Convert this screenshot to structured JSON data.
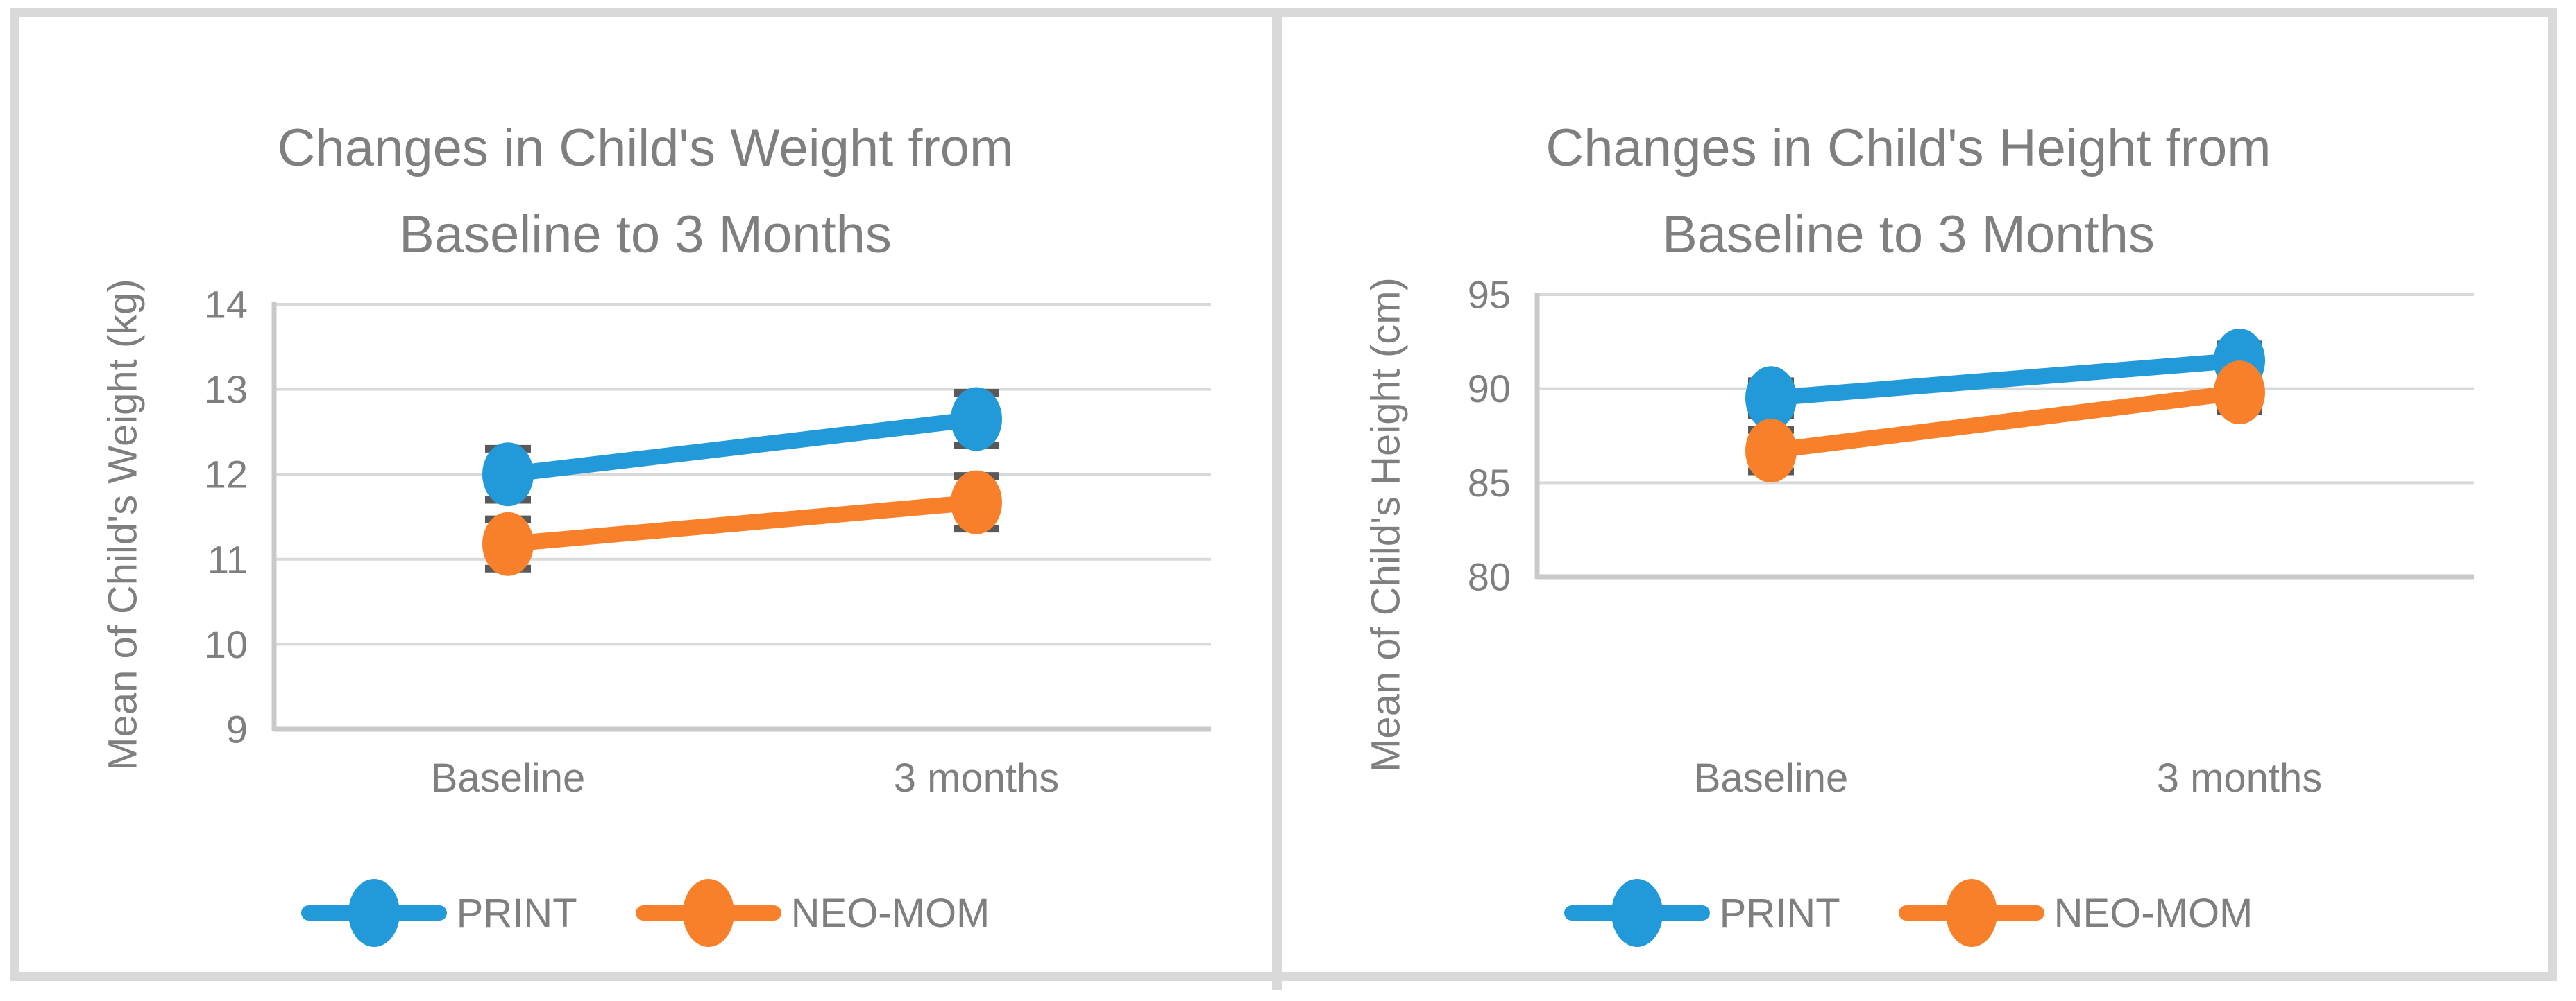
{
  "figure": {
    "background": "#ffffff",
    "frame_color": "#d9d9d9",
    "text_color": "#7f7f7f"
  },
  "colors": {
    "print_blue": "#2299d8",
    "neomom_orange": "#f8802b",
    "error_bar": "#595959",
    "gridline": "#d9d9d9",
    "axis_line": "#c9c9c9"
  },
  "legend": {
    "items": [
      {
        "label": "PRINT",
        "color": "#2299d8",
        "marker": "line-circle"
      },
      {
        "label": "NEO-MOM",
        "color": "#f8802b",
        "marker": "line-circle"
      }
    ]
  },
  "chart_data": [
    {
      "type": "line",
      "title": "Changes in Child's Weight from Baseline to 3 Months",
      "title_lines": [
        "Changes in Child's Weight from",
        "Baseline to 3 Months"
      ],
      "ylabel": "Mean of Child's Weight (kg)",
      "xlabel": "",
      "categories": [
        "Baseline",
        "3 months"
      ],
      "ylim": [
        9,
        14
      ],
      "yticks": [
        9,
        10,
        11,
        12,
        13,
        14
      ],
      "grid": true,
      "legend_position": "bottom",
      "series": [
        {
          "name": "PRINT",
          "color": "#2299d8",
          "values": [
            12.0,
            12.65
          ],
          "error": [
            0.3,
            0.31
          ]
        },
        {
          "name": "NEO-MOM",
          "color": "#f8802b",
          "values": [
            11.18,
            11.67
          ],
          "error": [
            0.29,
            0.31
          ]
        }
      ]
    },
    {
      "type": "line",
      "title": "Changes in Child's Height from Baseline to 3 Months",
      "title_lines": [
        "Changes in Child's Height from",
        "Baseline to 3 Months"
      ],
      "ylabel": "Mean of Child's Height (cm)",
      "xlabel": "",
      "categories": [
        "Baseline",
        "3 months"
      ],
      "ylim": [
        80,
        95
      ],
      "yticks": [
        80,
        85,
        90,
        95
      ],
      "grid": true,
      "legend_position": "bottom",
      "series": [
        {
          "name": "PRINT",
          "color": "#2299d8",
          "values": [
            89.5,
            91.5
          ],
          "error": [
            0.9,
            0.85
          ]
        },
        {
          "name": "NEO-MOM",
          "color": "#f8802b",
          "values": [
            86.7,
            89.8
          ],
          "error": [
            1.1,
            1.0
          ]
        }
      ]
    }
  ]
}
